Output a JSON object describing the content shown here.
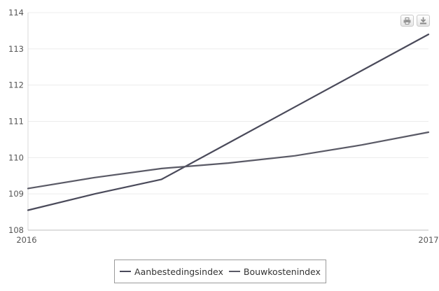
{
  "chart_data": {
    "type": "line",
    "x": [
      "2016",
      "",
      "",
      "",
      "",
      "",
      "2017"
    ],
    "series": [
      {
        "name": "Aanbestedingsindex",
        "color": "#4a4a5a",
        "values": [
          108.55,
          109.0,
          109.4,
          110.4,
          111.4,
          112.4,
          113.4
        ]
      },
      {
        "name": "Bouwkostenindex",
        "color": "#5a5a66",
        "values": [
          109.15,
          109.45,
          109.7,
          109.85,
          110.05,
          110.35,
          110.7
        ]
      }
    ],
    "y_ticks": [
      "108",
      "109",
      "110",
      "111",
      "112",
      "113",
      "114"
    ],
    "x_tick_labels": [
      "2016",
      "2017"
    ],
    "ylim": [
      108,
      114
    ],
    "grid": true,
    "legend_position": "bottom"
  },
  "toolbar": {
    "print_icon": "printer-icon",
    "download_icon": "download-icon"
  }
}
